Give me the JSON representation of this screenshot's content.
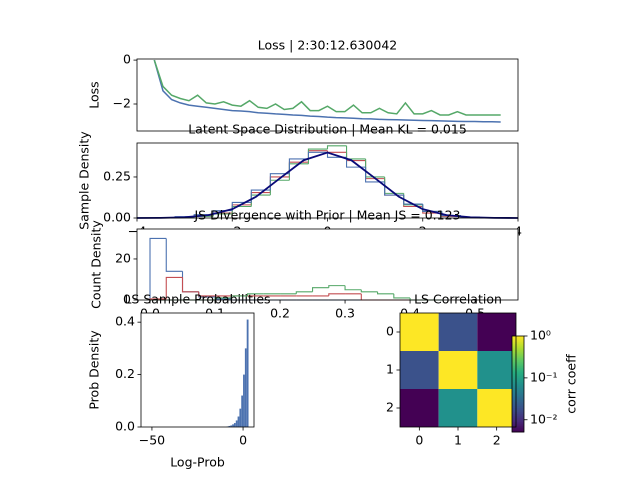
{
  "chart_data": [
    {
      "type": "line",
      "title": "Loss | 2:30:12.630042",
      "ylabel": "Loss",
      "x": [
        0,
        1,
        2,
        3,
        4,
        5,
        6,
        7,
        8,
        9,
        10,
        11,
        12,
        13,
        14,
        15,
        16,
        17,
        18,
        19,
        20,
        21,
        22,
        23,
        24,
        25,
        26,
        27,
        28,
        29,
        30,
        31,
        32,
        33,
        34,
        35,
        36,
        37,
        38,
        39,
        40
      ],
      "series": [
        {
          "color": "#4c72b0",
          "values": [
            0,
            -1.4,
            -1.8,
            -1.95,
            -2.05,
            -2.1,
            -2.15,
            -2.2,
            -2.25,
            -2.3,
            -2.32,
            -2.35,
            -2.4,
            -2.42,
            -2.45,
            -2.47,
            -2.5,
            -2.52,
            -2.55,
            -2.57,
            -2.6,
            -2.62,
            -2.63,
            -2.65,
            -2.67,
            -2.68,
            -2.7,
            -2.71,
            -2.72,
            -2.73,
            -2.74,
            -2.75,
            -2.76,
            -2.77,
            -2.78,
            -2.79,
            -2.8,
            -2.8,
            -2.81,
            -2.81,
            -2.82
          ]
        },
        {
          "color": "#55a868",
          "values": [
            0,
            -1.2,
            -1.6,
            -1.75,
            -1.85,
            -1.6,
            -1.95,
            -2.0,
            -1.9,
            -2.05,
            -2.1,
            -1.85,
            -2.15,
            -2.2,
            -2.0,
            -2.25,
            -2.2,
            -1.9,
            -2.3,
            -2.3,
            -2.1,
            -2.35,
            -2.35,
            -2.05,
            -2.4,
            -2.4,
            -2.2,
            -2.4,
            -2.45,
            -1.95,
            -2.45,
            -2.45,
            -2.3,
            -2.5,
            -2.5,
            -2.35,
            -2.5,
            -2.5,
            -2.5,
            -2.5,
            -2.5
          ]
        }
      ],
      "xlim": [
        -2,
        42
      ],
      "ylim": [
        -3.23,
        0.05
      ],
      "yticks": [
        0,
        {
          "value": -2,
          "label": "−2"
        }
      ]
    },
    {
      "type": "step_histogram",
      "title": "Latent Space Distribution | Mean KL = 0.015",
      "ylabel": "Sample Density",
      "bins": [
        -4,
        -3.6,
        -3.2,
        -2.8,
        -2.4,
        -2,
        -1.6,
        -1.2,
        -0.8,
        -0.4,
        0,
        0.4,
        0.8,
        1.2,
        1.6,
        2,
        2.4,
        2.8,
        3.2,
        3.6,
        4
      ],
      "series": [
        {
          "color": "#c44e52",
          "values": [
            0,
            0,
            0.005,
            0.012,
            0.03,
            0.08,
            0.155,
            0.25,
            0.34,
            0.41,
            0.4,
            0.35,
            0.24,
            0.14,
            0.07,
            0.03,
            0.01,
            0.003,
            0,
            0
          ]
        },
        {
          "color": "#55a868",
          "values": [
            0,
            0,
            0.002,
            0.01,
            0.025,
            0.07,
            0.14,
            0.23,
            0.33,
            0.42,
            0.44,
            0.36,
            0.25,
            0.15,
            0.08,
            0.04,
            0.015,
            0.005,
            0.001,
            0
          ]
        },
        {
          "color": "#4c72b0",
          "values": [
            0.001,
            0.003,
            0.008,
            0.02,
            0.045,
            0.095,
            0.17,
            0.27,
            0.36,
            0.4,
            0.37,
            0.31,
            0.22,
            0.14,
            0.085,
            0.04,
            0.015,
            0.005,
            0.002,
            0
          ]
        }
      ],
      "curve": {
        "color": "#0a0a78",
        "x": [
          -4,
          -3.5,
          -3,
          -2.5,
          -2,
          -1.5,
          -1,
          -0.5,
          0,
          0.5,
          1,
          1.5,
          2,
          2.5,
          3,
          3.5,
          4
        ],
        "values": [
          0.0001,
          0.0009,
          0.0044,
          0.0175,
          0.054,
          0.1295,
          0.242,
          0.352,
          0.399,
          0.352,
          0.242,
          0.1295,
          0.054,
          0.0175,
          0.0044,
          0.0009,
          0.0001
        ]
      },
      "xlim": [
        -4,
        4
      ],
      "ylim": [
        0,
        0.457
      ],
      "xticks": [
        {
          "value": -4,
          "label": "−4"
        },
        {
          "value": -2,
          "label": "−2"
        },
        0,
        2,
        4
      ],
      "yticks": [
        {
          "value": 0,
          "label": "0.00"
        },
        {
          "value": 0.25,
          "label": "0.25"
        }
      ]
    },
    {
      "type": "step_histogram",
      "title": "JS Divergence with Prior | Mean JS = 0.123",
      "ylabel": "Count Density",
      "bins": [
        0,
        0.025,
        0.05,
        0.075,
        0.1,
        0.125,
        0.15,
        0.175,
        0.2,
        0.225,
        0.25,
        0.275,
        0.3,
        0.325,
        0.35,
        0.375,
        0.4,
        0.425,
        0.45
      ],
      "series": [
        {
          "color": "#4c72b0",
          "values": [
            30,
            14,
            4,
            1.5,
            0.5,
            0,
            0,
            0,
            0,
            0,
            0,
            0,
            0,
            0,
            0,
            0,
            0,
            0
          ]
        },
        {
          "color": "#c44e52",
          "values": [
            0.5,
            11,
            4,
            2,
            2,
            2,
            2,
            2,
            2,
            2,
            2,
            3,
            3,
            0,
            0,
            0,
            0,
            0
          ]
        },
        {
          "color": "#55a868",
          "values": [
            0,
            0,
            0,
            0,
            1,
            2,
            3,
            3,
            3,
            4,
            6,
            7,
            5,
            4,
            3,
            1,
            0,
            0
          ]
        }
      ],
      "xlim": [
        -0.02,
        0.566
      ],
      "ylim": [
        0,
        34.6
      ],
      "xticks": [
        {
          "value": 0,
          "label": "0.0"
        },
        0.1,
        0.2,
        0.3,
        0.4,
        0.5
      ],
      "yticks": [
        0,
        20
      ]
    },
    {
      "type": "histogram",
      "title": "LS Sample Probabilities",
      "ylabel": "Prob Density",
      "xlabel": "Log-Prob",
      "color": "#4c72b0",
      "bins": [
        -9,
        -8,
        -7,
        -6,
        -5,
        -4,
        -3,
        -2,
        -1,
        0,
        1,
        2,
        3
      ],
      "values": [
        0.002,
        0.004,
        0.006,
        0.01,
        0.015,
        0.025,
        0.04,
        0.07,
        0.12,
        0.2,
        0.3,
        0.41
      ],
      "xlim": [
        -56,
        6
      ],
      "ylim": [
        0,
        0.435
      ],
      "xticks": [
        {
          "value": -50,
          "label": "−50"
        },
        0
      ],
      "yticks": [
        {
          "value": 0,
          "label": "0.0"
        },
        0.2,
        0.4
      ]
    },
    {
      "type": "heatmap",
      "title": "LS Correlation",
      "colorbar_label": "corr coeff",
      "cmap": "viridis",
      "log_color": true,
      "values": [
        [
          1,
          0.019,
          0.0051
        ],
        [
          0.019,
          1,
          0.071
        ],
        [
          0.0051,
          0.071,
          1
        ]
      ],
      "clim": [
        0.0051,
        1
      ],
      "cticks": [
        {
          "value": 1,
          "label": "10⁰"
        },
        {
          "value": 0.1,
          "label": "10⁻¹"
        },
        {
          "value": 0.01,
          "label": "10⁻²"
        }
      ],
      "xlim": [
        -0.5,
        2.5
      ],
      "ylim": [
        2.5,
        -0.5
      ],
      "xticks": [
        0,
        1,
        2
      ],
      "yticks": [
        0,
        1,
        2
      ]
    }
  ]
}
